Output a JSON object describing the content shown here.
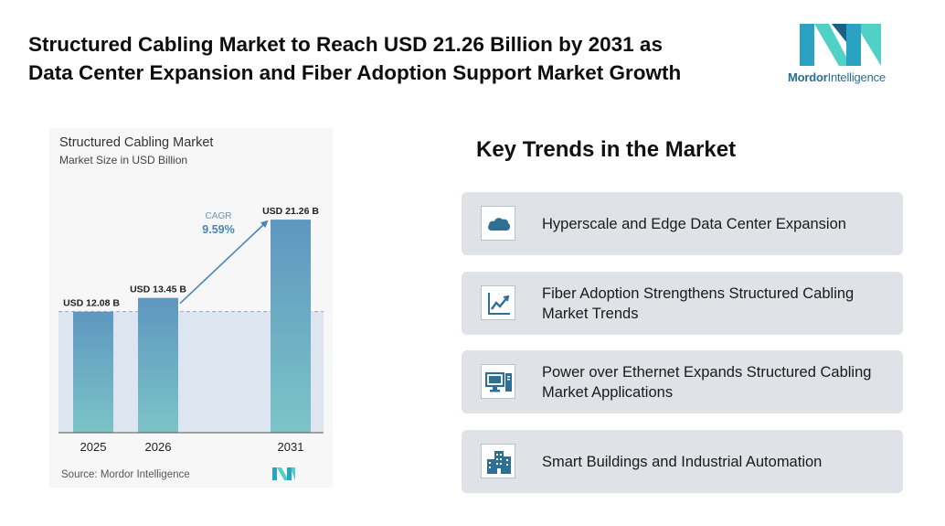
{
  "headline": {
    "line1": "Structured Cabling Market to Reach USD 21.26 Billion by 2031 as",
    "line2": "Data Center Expansion and Fiber Adoption Support Market Growth"
  },
  "logo": {
    "name_part1": "Mordor",
    "name_part2": "Intelligence",
    "icon": "mordor-intelligence-logo",
    "colors": [
      "#2aa3c2",
      "#4fd1c5",
      "#1f5f86"
    ]
  },
  "chart_data": {
    "type": "bar",
    "title": "Structured Cabling Market",
    "subtitle": "Market Size in USD Billion",
    "categories": [
      "2025",
      "2026",
      "2031"
    ],
    "values": [
      12.08,
      13.45,
      21.26
    ],
    "data_labels": [
      "USD 12.08 B",
      "USD 13.45 B",
      "USD 21.26 B"
    ],
    "cagr_label": "CAGR",
    "cagr_value": "9.59%",
    "ylim": [
      0,
      22
    ],
    "source": "Source: Mordor Intelligence",
    "bar_color_top": "#5e97c0",
    "bar_color_bottom": "#7cc4c7",
    "band_color": "#dde6f0",
    "arrow_color": "#4a86b8"
  },
  "trends": {
    "heading": "Key Trends in the Market",
    "items": [
      {
        "label": "Hyperscale and Edge Data Center Expansion",
        "icon": "cloud-icon"
      },
      {
        "label": "Fiber Adoption Strengthens Structured Cabling Market Trends",
        "icon": "line-chart-icon"
      },
      {
        "label": "Power over Ethernet Expands Structured Cabling Market Applications",
        "icon": "desktop-computer-icon"
      },
      {
        "label": "Smart Buildings and Industrial Automation",
        "icon": "buildings-icon"
      }
    ]
  }
}
